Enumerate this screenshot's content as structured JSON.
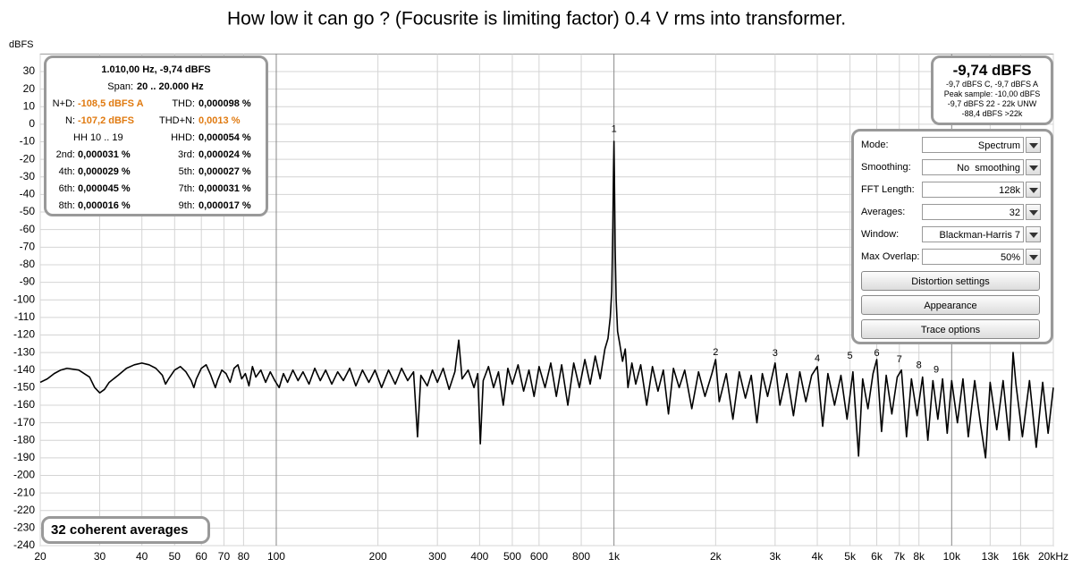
{
  "chart_data": {
    "type": "line",
    "title": "How low it can go ? (Focusrite is limiting factor) 0.4 V rms into transformer.",
    "ylabel": "dBFS",
    "xscale": "log",
    "grid": true,
    "color": "#000000",
    "xlim": [
      20,
      20000
    ],
    "ylim": [
      -240,
      40
    ],
    "xticks": [
      20,
      30,
      40,
      50,
      60,
      70,
      80,
      100,
      200,
      300,
      400,
      500,
      600,
      800,
      {
        "value": 1000,
        "label": "1k"
      },
      {
        "value": 2000,
        "label": "2k"
      },
      {
        "value": 3000,
        "label": "3k"
      },
      {
        "value": 4000,
        "label": "4k"
      },
      {
        "value": 5000,
        "label": "5k"
      },
      {
        "value": 6000,
        "label": "6k"
      },
      {
        "value": 7000,
        "label": "7k"
      },
      {
        "value": 8000,
        "label": "8k"
      },
      {
        "value": 10000,
        "label": "10k"
      },
      {
        "value": 13000,
        "label": "13k"
      },
      {
        "value": 16000,
        "label": "16k"
      },
      {
        "value": 20000,
        "label": "20kHz"
      }
    ],
    "yticks": [
      30,
      20,
      10,
      0,
      -10,
      -20,
      -30,
      -40,
      -50,
      -60,
      -70,
      -80,
      -90,
      -100,
      -110,
      -120,
      -130,
      -140,
      -150,
      -160,
      -170,
      -180,
      -190,
      -200,
      -210,
      -220,
      -230,
      -240
    ],
    "x": [
      20,
      21,
      22,
      23,
      24,
      26,
      28,
      29,
      30,
      31,
      32,
      34,
      36,
      38,
      40,
      42,
      44,
      46,
      47,
      48,
      50,
      52,
      54,
      56,
      57,
      58,
      60,
      62,
      64,
      66,
      67,
      69,
      71,
      73,
      75,
      77,
      79,
      81,
      83,
      85,
      87,
      90,
      93,
      96,
      99,
      102,
      105,
      108,
      112,
      116,
      120,
      125,
      130,
      135,
      140,
      146,
      152,
      158,
      165,
      172,
      180,
      188,
      196,
      205,
      215,
      225,
      235,
      245,
      255,
      262,
      268,
      280,
      290,
      300,
      312,
      325,
      338,
      347,
      355,
      370,
      385,
      395,
      402,
      410,
      425,
      440,
      455,
      470,
      485,
      500,
      520,
      540,
      560,
      580,
      600,
      625,
      650,
      675,
      700,
      730,
      760,
      790,
      820,
      850,
      880,
      910,
      940,
      960,
      975,
      985,
      992,
      997,
      1000,
      1003,
      1008,
      1015,
      1025,
      1040,
      1060,
      1080,
      1100,
      1130,
      1160,
      1200,
      1250,
      1300,
      1350,
      1400,
      1450,
      1500,
      1560,
      1620,
      1700,
      1780,
      1860,
      1950,
      2000,
      2050,
      2150,
      2250,
      2350,
      2450,
      2550,
      2650,
      2750,
      2850,
      3000,
      3100,
      3250,
      3400,
      3550,
      3700,
      3850,
      4000,
      4150,
      4300,
      4500,
      4700,
      4900,
      5100,
      5300,
      5450,
      5650,
      5850,
      6000,
      6200,
      6400,
      6650,
      6900,
      7100,
      7350,
      7600,
      7900,
      8200,
      8500,
      8800,
      9100,
      9400,
      9700,
      10000,
      10400,
      10800,
      11200,
      11700,
      12200,
      12600,
      13000,
      13600,
      14200,
      14800,
      15200,
      15500,
      16200,
      17000,
      17800,
      18600,
      19300,
      20000
    ],
    "values": [
      -147,
      -145,
      -142,
      -140,
      -139,
      -140,
      -144,
      -150,
      -153,
      -151,
      -147,
      -143,
      -139,
      -137,
      -136,
      -137,
      -139,
      -143,
      -148,
      -145,
      -140,
      -138,
      -141,
      -146,
      -150,
      -145,
      -139,
      -137,
      -143,
      -150,
      -146,
      -140,
      -142,
      -147,
      -139,
      -137,
      -145,
      -142,
      -149,
      -138,
      -144,
      -140,
      -147,
      -141,
      -146,
      -150,
      -142,
      -147,
      -140,
      -146,
      -141,
      -148,
      -139,
      -146,
      -140,
      -148,
      -141,
      -146,
      -139,
      -149,
      -140,
      -147,
      -140,
      -150,
      -140,
      -148,
      -139,
      -146,
      -141,
      -178,
      -143,
      -149,
      -140,
      -147,
      -139,
      -151,
      -141,
      -123,
      -145,
      -140,
      -150,
      -142,
      -182,
      -146,
      -138,
      -150,
      -141,
      -160,
      -139,
      -148,
      -137,
      -152,
      -140,
      -155,
      -138,
      -150,
      -136,
      -155,
      -137,
      -160,
      -136,
      -150,
      -134,
      -148,
      -132,
      -145,
      -128,
      -122,
      -110,
      -95,
      -60,
      -25,
      -9.74,
      -30,
      -70,
      -100,
      -118,
      -125,
      -135,
      -128,
      -150,
      -136,
      -148,
      -137,
      -160,
      -138,
      -152,
      -140,
      -165,
      -139,
      -150,
      -140,
      -162,
      -141,
      -155,
      -142,
      -134,
      -158,
      -142,
      -168,
      -141,
      -156,
      -143,
      -170,
      -142,
      -155,
      -136,
      -160,
      -142,
      -166,
      -141,
      -158,
      -143,
      -138,
      -172,
      -142,
      -160,
      -143,
      -168,
      -141,
      -189,
      -145,
      -162,
      -142,
      -134,
      -175,
      -143,
      -165,
      -144,
      -140,
      -178,
      -145,
      -166,
      -144,
      -180,
      -146,
      -168,
      -145,
      -176,
      -146,
      -170,
      -145,
      -178,
      -146,
      -172,
      -190,
      -147,
      -174,
      -146,
      -180,
      -130,
      -148,
      -178,
      -146,
      -184,
      -147,
      -176,
      -150
    ],
    "harmonic_markers": [
      {
        "label": "1",
        "x": 1000,
        "y": -3
      },
      {
        "label": "2",
        "x": 2000,
        "y": -130
      },
      {
        "label": "3",
        "x": 3000,
        "y": -130.5
      },
      {
        "label": "4",
        "x": 4000,
        "y": -133.5
      },
      {
        "label": "5",
        "x": 5000,
        "y": -132
      },
      {
        "label": "6",
        "x": 6000,
        "y": -130.5
      },
      {
        "label": "7",
        "x": 7000,
        "y": -134
      },
      {
        "label": "8",
        "x": 8000,
        "y": -137.5
      },
      {
        "label": "9",
        "x": 9000,
        "y": -140
      }
    ]
  },
  "info_panel": {
    "header": "1.010,00 Hz, -9,74 dBFS",
    "span_label": "Span:",
    "span_value": "20 .. 20.000 Hz",
    "rows": [
      {
        "left_label": "N+D:",
        "left_value": "-108,5 dBFS A",
        "right_label": "THD:",
        "right_value": "0,000098 %"
      },
      {
        "left_label": "N:",
        "left_value": "-107,2 dBFS",
        "right_label": "THD+N:",
        "right_value": "0,0013 %"
      },
      {
        "left_label": "HH 10 .. 19",
        "right_label": "HHD:",
        "right_value": "0,000054 %"
      },
      {
        "left_label": "2nd:",
        "left_value": "0,000031 %",
        "right_label": "3rd:",
        "right_value": "0,000024 %"
      },
      {
        "left_label": "4th:",
        "left_value": "0,000029 %",
        "right_label": "5th:",
        "right_value": "0,000027 %"
      },
      {
        "left_label": "6th:",
        "left_value": "0,000045 %",
        "right_label": "7th:",
        "right_value": "0,000031 %"
      },
      {
        "left_label": "8th:",
        "left_value": "0,000016 %",
        "right_label": "9th:",
        "right_value": "0,000017 %"
      }
    ]
  },
  "level_panel": {
    "level": "-9,74 dBFS",
    "lines": [
      "-9,7 dBFS C, -9,7 dBFS A",
      "Peak sample: -10,00 dBFS",
      "-9,7 dBFS 22 - 22k UNW",
      "-88,4 dBFS >22k"
    ]
  },
  "controls": {
    "fields": [
      {
        "label": "Mode:",
        "value": "Spectrum"
      },
      {
        "label": "Smoothing:",
        "value": "No  smoothing"
      },
      {
        "label": "FFT Length:",
        "value": "128k"
      },
      {
        "label": "Averages:",
        "value": "32"
      },
      {
        "label": "Window:",
        "value": "Blackman-Harris 7"
      },
      {
        "label": "Max Overlap:",
        "value": "50%"
      }
    ],
    "buttons": [
      "Distortion settings",
      "Appearance",
      "Trace options"
    ]
  },
  "footer_label": "32 coherent averages"
}
